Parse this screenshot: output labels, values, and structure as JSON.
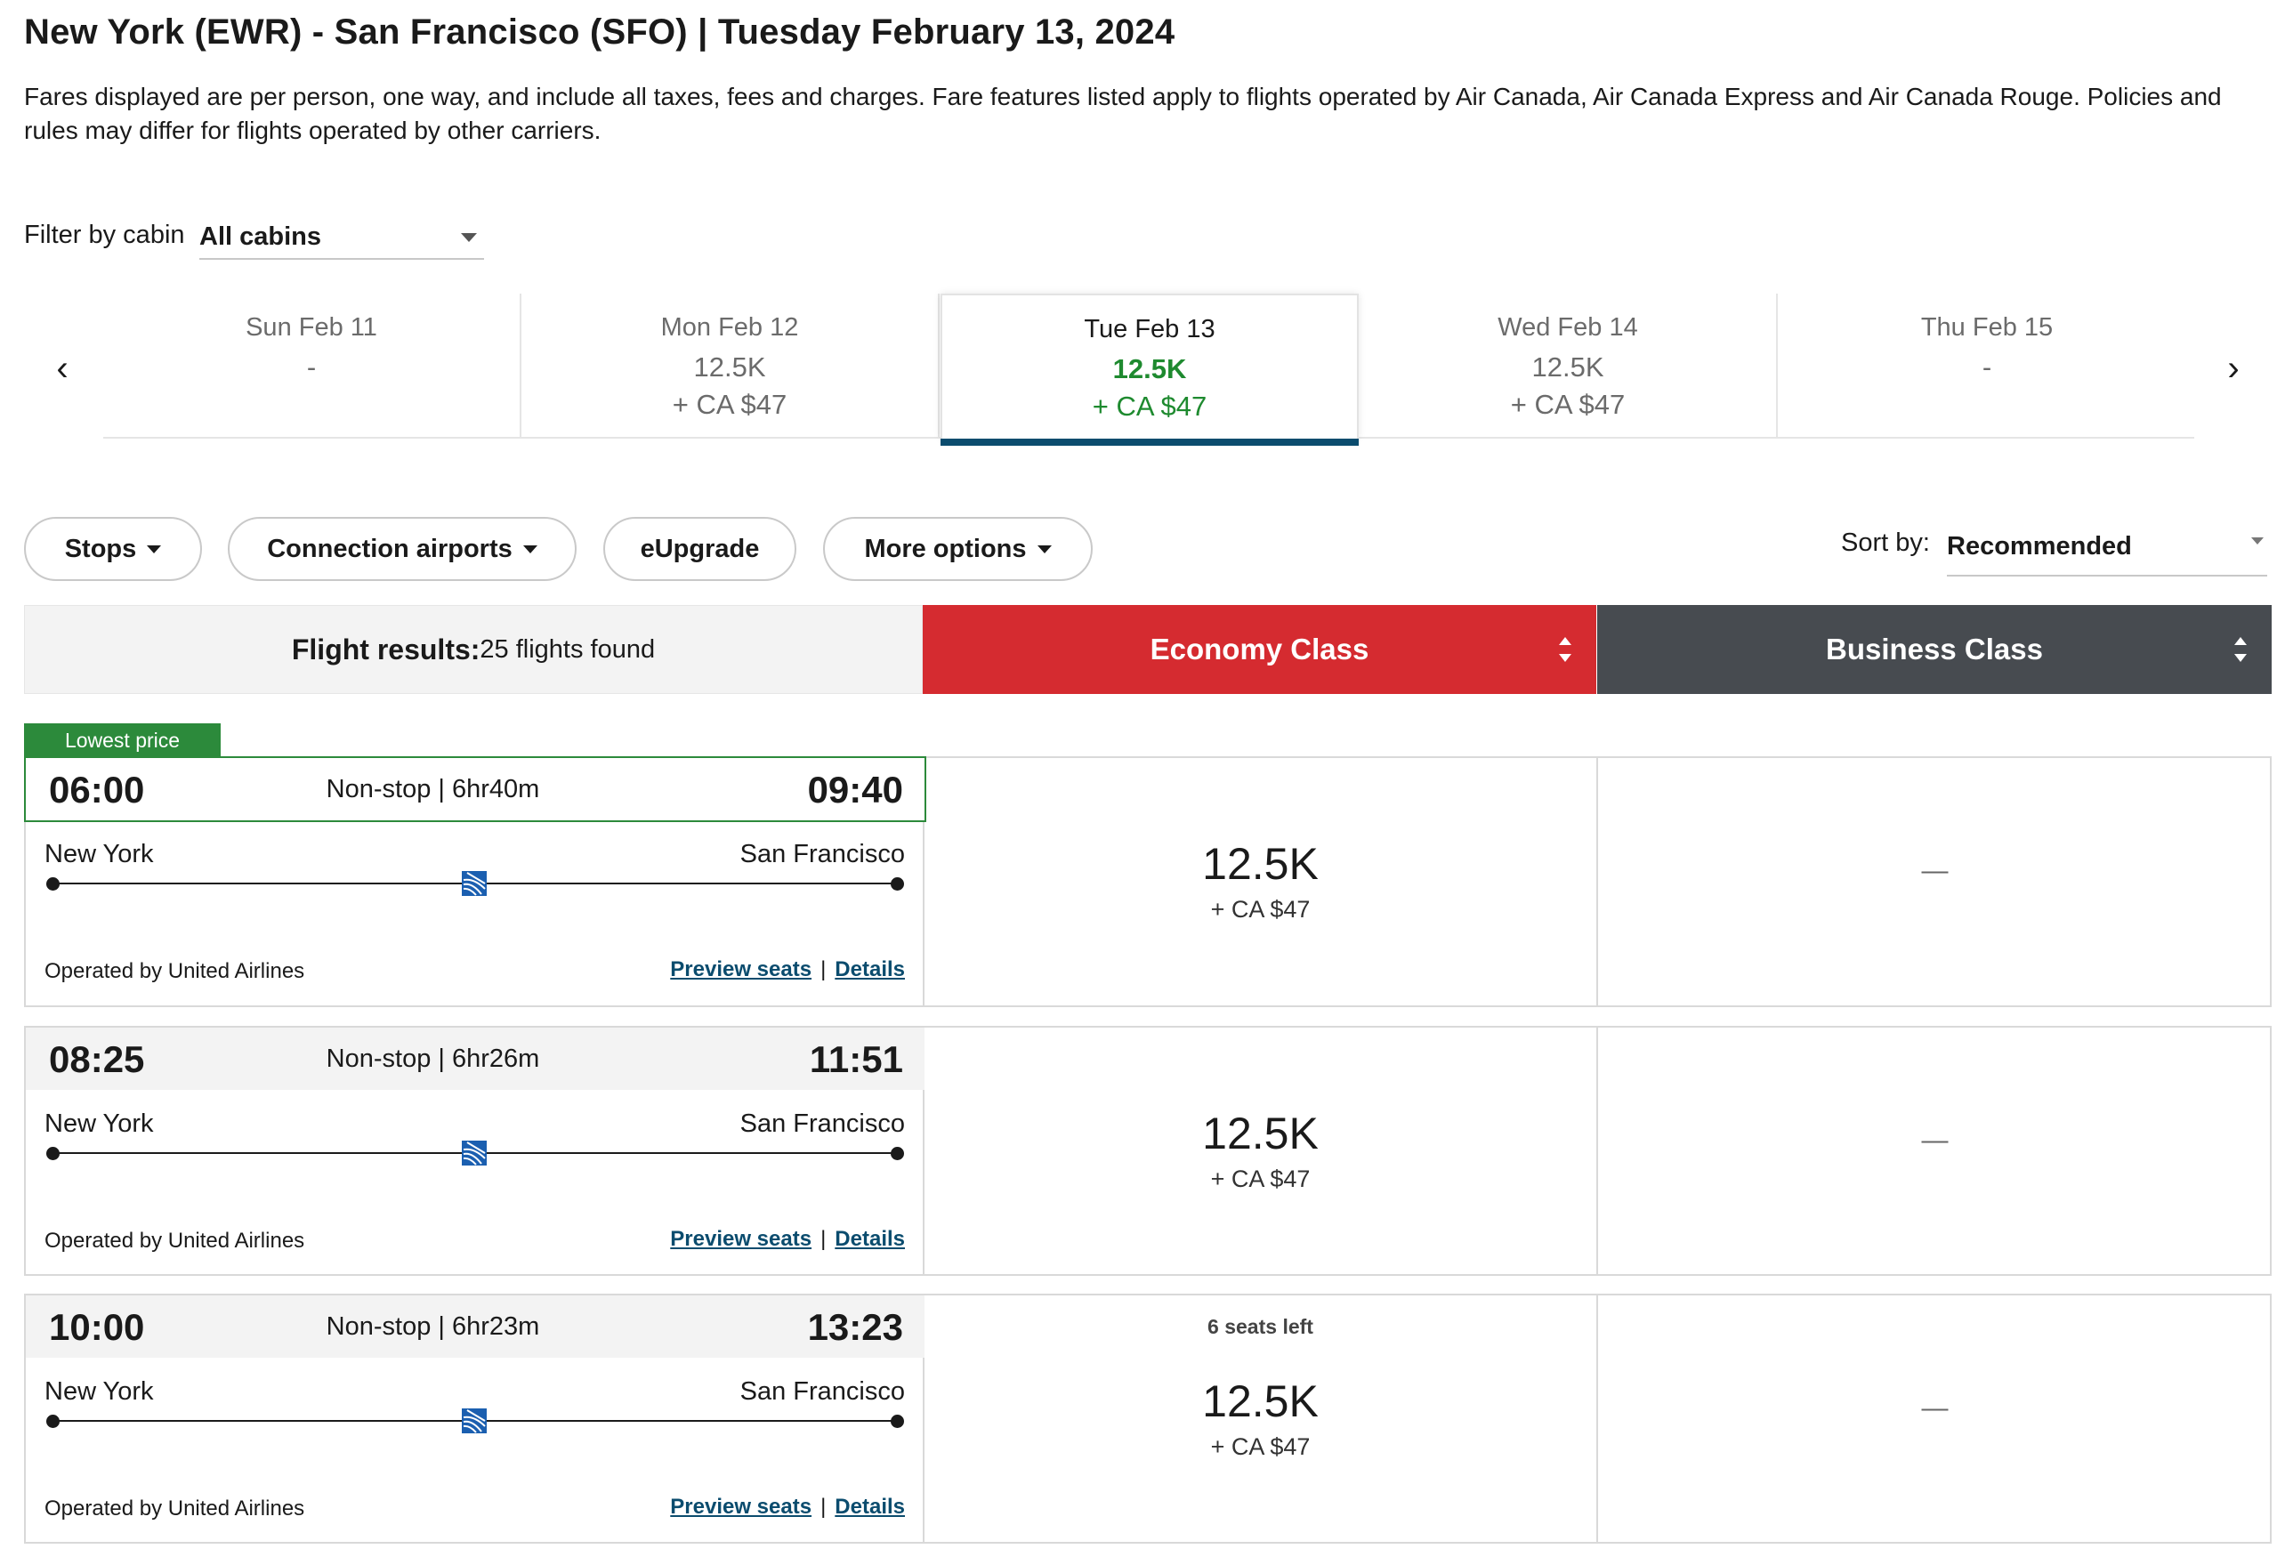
{
  "header": {
    "title": "New York (EWR) - San Francisco (SFO)  |  Tuesday February 13, 2024",
    "disclaimer": "Fares displayed are per person, one way, and include all taxes, fees and charges. Fare features listed apply to flights operated by Air Canada, Air Canada Express and Air Canada Rouge. Policies and rules may differ for flights operated by other carriers."
  },
  "filter": {
    "label": "Filter by cabin",
    "value": "All cabins"
  },
  "carousel": {
    "prev_icon": "chevron-left-icon",
    "next_icon": "chevron-right-icon",
    "prev_glyph": "‹",
    "next_glyph": "›",
    "days": [
      {
        "date": "Sun Feb 11",
        "points": "-",
        "fee": ""
      },
      {
        "date": "Mon Feb 12",
        "points": "12.5K",
        "fee": "+ CA $47"
      },
      {
        "date": "Tue Feb 13",
        "points": "12.5K",
        "fee": "+ CA $47",
        "selected": true
      },
      {
        "date": "Wed Feb 14",
        "points": "12.5K",
        "fee": "+ CA $47"
      },
      {
        "date": "Thu Feb 15",
        "points": "-",
        "fee": ""
      }
    ]
  },
  "options": {
    "stops": "Stops",
    "connection_airports": "Connection airports",
    "eupgrade": "eUpgrade",
    "more_options": "More options"
  },
  "sort": {
    "label": "Sort by:",
    "value": "Recommended"
  },
  "results_header": {
    "label": "Flight results:",
    "count": "25 flights found",
    "economy": "Economy Class",
    "business": "Business Class"
  },
  "lowest_price_tag": "Lowest price",
  "flights": [
    {
      "depart": "06:00",
      "arrive": "09:40",
      "summary": "Non-stop | 6hr40m",
      "from": "New York",
      "to": "San Francisco",
      "operator": "Operated by United Airlines",
      "preview": "Preview seats",
      "details": "Details",
      "seats_left": "",
      "economy_points": "12.5K",
      "economy_fee": "+ CA $47",
      "business": "—"
    },
    {
      "depart": "08:25",
      "arrive": "11:51",
      "summary": "Non-stop | 6hr26m",
      "from": "New York",
      "to": "San Francisco",
      "operator": "Operated by United Airlines",
      "preview": "Preview seats",
      "details": "Details",
      "seats_left": "",
      "economy_points": "12.5K",
      "economy_fee": "+ CA $47",
      "business": "—"
    },
    {
      "depart": "10:00",
      "arrive": "13:23",
      "summary": "Non-stop | 6hr23m",
      "from": "New York",
      "to": "San Francisco",
      "operator": "Operated by United Airlines",
      "preview": "Preview seats",
      "details": "Details",
      "seats_left": "6 seats left",
      "economy_points": "12.5K",
      "economy_fee": "+ CA $47",
      "business": "—"
    }
  ],
  "colors": {
    "economy": "#d52b30",
    "business": "#474b50",
    "selected_price": "#1e8a2f",
    "link": "#0b4c6e",
    "lowest": "#2c8a3b"
  }
}
